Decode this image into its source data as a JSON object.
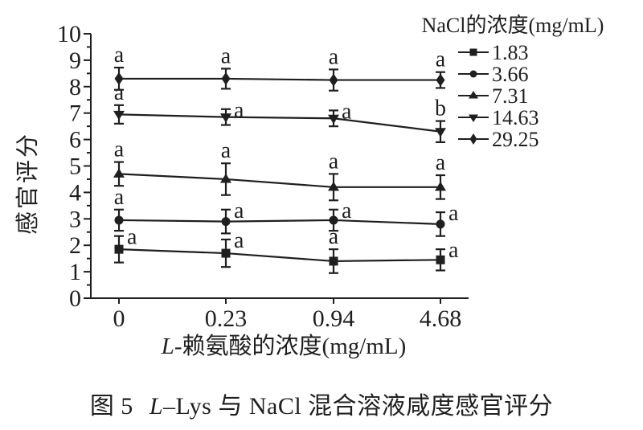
{
  "figure": {
    "background": "#ffffff",
    "ink_color": "#1f1f1f"
  },
  "chart_data": {
    "type": "line",
    "title": "",
    "x_categories": [
      "0",
      "0.23",
      "0.94",
      "4.68"
    ],
    "xlabel": {
      "italic": "L",
      "rest": "-赖氨酸的浓度(mg/mL)"
    },
    "ylabel": "感官评分",
    "ylim": [
      0,
      10
    ],
    "y_tick_labels": [
      "0",
      "1",
      "2",
      "3",
      "4",
      "5",
      "6",
      "7",
      "8",
      "9",
      "10"
    ],
    "y_minor_step": 0.5,
    "grid": false,
    "error_bars": true,
    "legend": {
      "title": "NaCl的浓度(mg/mL)",
      "position": "top-right"
    },
    "series": [
      {
        "name": "1.83",
        "marker": "square",
        "values": [
          1.85,
          1.7,
          1.4,
          1.45
        ],
        "errors": [
          0.5,
          0.52,
          0.45,
          0.4
        ],
        "sig_letters": [
          "a",
          "a",
          "a",
          "a"
        ],
        "letter_side": [
          "right",
          "right",
          "above",
          "right"
        ]
      },
      {
        "name": "3.66",
        "marker": "circle",
        "values": [
          2.95,
          2.9,
          2.95,
          2.8
        ],
        "errors": [
          0.4,
          0.45,
          0.4,
          0.45
        ],
        "sig_letters": [
          "a",
          "a",
          "a",
          "a"
        ],
        "letter_side": [
          "above",
          "right",
          "right",
          "right"
        ]
      },
      {
        "name": "7.31",
        "marker": "triangle-up",
        "values": [
          4.7,
          4.5,
          4.2,
          4.2
        ],
        "errors": [
          0.45,
          0.6,
          0.5,
          0.45
        ],
        "sig_letters": [
          "a",
          "a",
          "a",
          "a"
        ],
        "letter_side": [
          "above",
          "above",
          "above",
          "above"
        ]
      },
      {
        "name": "14.63",
        "marker": "triangle-down",
        "values": [
          6.95,
          6.85,
          6.8,
          6.3
        ],
        "errors": [
          0.35,
          0.3,
          0.3,
          0.4
        ],
        "sig_letters": [
          "a",
          "a",
          "a",
          "b"
        ],
        "letter_side": [
          "above",
          "right",
          "right",
          "above"
        ]
      },
      {
        "name": "29.25",
        "marker": "diamond",
        "values": [
          8.3,
          8.3,
          8.25,
          8.25
        ],
        "errors": [
          0.42,
          0.38,
          0.4,
          0.3
        ],
        "sig_letters": [
          "a",
          "a",
          "a",
          "a"
        ],
        "letter_side": [
          "above",
          "above",
          "above",
          "above"
        ]
      }
    ]
  },
  "caption": {
    "figure_label": "图 5",
    "italic": "L",
    "rest": "–Lys 与 NaCl 混合溶液咸度感官评分"
  }
}
